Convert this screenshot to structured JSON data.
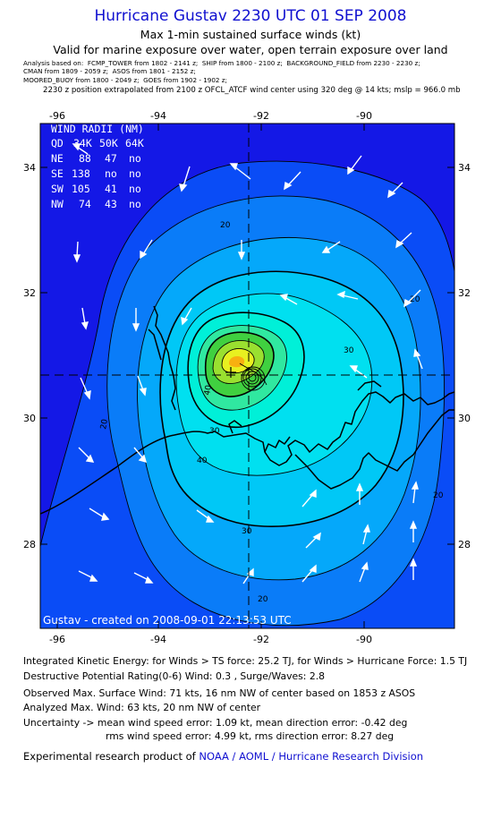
{
  "header": {
    "title": "Hurricane Gustav 2230 UTC 01 SEP 2008",
    "subtitle1": "Max 1-min sustained surface winds (kt)",
    "subtitle2": "Valid for marine exposure over water, open terrain exposure over land"
  },
  "analysis": {
    "line1": "Analysis based on:  FCMP_TOWER from 1802 - 2141 z;  SHIP from 1800 - 2100 z;  BACKGROUND_FIELD from 2230 - 2230 z;",
    "line2": "CMAN from 1809 - 2059 z;  ASOS from 1801 - 2152 z;",
    "line3": "MOORED_BUOY from 1800 - 2049 z;  GOES from 1902 - 1902 z;",
    "position": "2230 z position extrapolated from 2100 z OFCL_ATCF wind center using 320 deg @ 14 kts; mslp = 966.0 mb"
  },
  "map": {
    "lon_ticks": [
      "-96",
      "-94",
      "-92",
      "-90"
    ],
    "lat_ticks": [
      "34",
      "32",
      "30",
      "28"
    ],
    "contour_labels": [
      "20",
      "20",
      "20",
      "20",
      "20",
      "30",
      "30",
      "30",
      "40",
      "40"
    ],
    "wind_radii": {
      "title": "WIND RADII (NM)",
      "header": [
        "QD",
        "34K",
        "50K",
        "64K"
      ],
      "rows": [
        [
          "NE",
          "88",
          "47",
          "no"
        ],
        [
          "SE",
          "138",
          "no",
          "no"
        ],
        [
          "SW",
          "105",
          "41",
          "no"
        ],
        [
          "NW",
          "74",
          "43",
          "no"
        ]
      ]
    },
    "created": "Gustav  -  created  on  2008-09-01  22:13:53  UTC",
    "colors": {
      "level_10": "#1418e6",
      "level_15": "#0a4cf6",
      "level_20": "#0a7cf8",
      "level_25": "#05a8fa",
      "level_30": "#00c8f6",
      "level_35": "#00e0f0",
      "level_40": "#00f0d8",
      "level_45": "#30e8a0",
      "level_50": "#40d040",
      "level_55": "#9ae030",
      "level_60": "#e8f020",
      "level_65": "#f8b010"
    }
  },
  "info": {
    "ike": "Integrated Kinetic Energy:  for Winds > TS force: 25.2 TJ,  for Winds > Hurricane Force: 1.5 TJ",
    "dpr": "Destructive Potential Rating(0-6)   Wind: 0.3 , Surge/Waves: 2.8",
    "obs_max": "Observed Max. Surface Wind: 71 kts, 16 nm NW of center based on 1853 z ASOS",
    "ana_max": "Analyzed Max. Wind: 63 kts, 20 nm NW of center",
    "unc1": "Uncertainty -> mean wind speed error: 1.09 kt,   mean direction error:  -0.42 deg",
    "unc2": "rms wind speed error: 4.99 kt,   rms direction error: 8.27 deg",
    "credit_prefix": "Experimental research product of",
    "credit_org": "NOAA / AOML / Hurricane Research Division"
  }
}
